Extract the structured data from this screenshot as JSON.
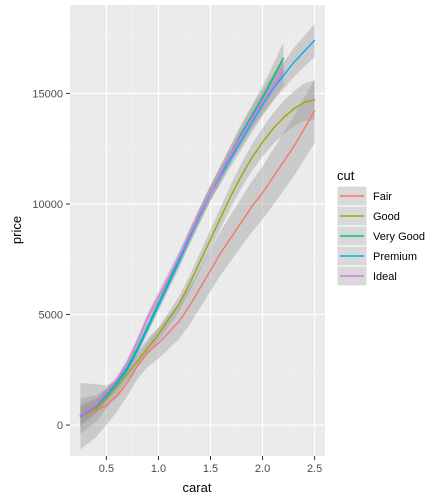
{
  "chart_data": {
    "type": "line",
    "title": "",
    "xlabel": "carat",
    "ylabel": "price",
    "xlim": [
      0.15,
      2.6
    ],
    "ylim": [
      -1400,
      19000
    ],
    "x_ticks": [
      0.5,
      1.0,
      1.5,
      2.0,
      2.5
    ],
    "x_tick_labels": [
      "0.5",
      "1.0",
      "1.5",
      "2.0",
      "2.5"
    ],
    "y_ticks": [
      0,
      5000,
      10000,
      15000
    ],
    "y_tick_labels": [
      "0",
      "5000",
      "10000",
      "15000"
    ],
    "grid": true,
    "legend": {
      "title": "cut",
      "position": "right"
    },
    "series": [
      {
        "name": "Fair",
        "color": "#F8766D",
        "x": [
          0.25,
          0.4,
          0.5,
          0.6,
          0.7,
          0.8,
          0.9,
          1.0,
          1.1,
          1.2,
          1.3,
          1.4,
          1.5,
          1.6,
          1.7,
          1.8,
          1.9,
          2.0,
          2.1,
          2.2,
          2.3,
          2.4,
          2.5
        ],
        "y": [
          400,
          650,
          900,
          1300,
          1900,
          2700,
          3300,
          3700,
          4200,
          4700,
          5400,
          6200,
          7000,
          7800,
          8500,
          9200,
          9900,
          10500,
          11200,
          11900,
          12600,
          13400,
          14200
        ],
        "band": [
          1500,
          1200,
          900,
          700,
          600,
          600,
          650,
          700,
          750,
          800,
          850,
          900,
          950,
          1000,
          1050,
          1100,
          1150,
          1200,
          1250,
          1300,
          1350,
          1400,
          1450
        ]
      },
      {
        "name": "Good",
        "color": "#A3A500",
        "x": [
          0.25,
          0.4,
          0.5,
          0.6,
          0.7,
          0.8,
          0.9,
          1.0,
          1.1,
          1.2,
          1.3,
          1.4,
          1.5,
          1.6,
          1.7,
          1.8,
          1.9,
          2.0,
          2.1,
          2.2,
          2.3,
          2.4,
          2.5
        ],
        "y": [
          400,
          750,
          1200,
          1700,
          2300,
          2900,
          3500,
          4100,
          4800,
          5500,
          6400,
          7400,
          8400,
          9400,
          10400,
          11300,
          12100,
          12800,
          13400,
          13900,
          14300,
          14600,
          14700
        ],
        "band": [
          800,
          600,
          450,
          350,
          300,
          280,
          280,
          300,
          320,
          340,
          360,
          400,
          440,
          480,
          520,
          560,
          600,
          650,
          700,
          750,
          800,
          850,
          900
        ]
      },
      {
        "name": "Very Good",
        "color": "#00BF7D",
        "x": [
          0.25,
          0.4,
          0.5,
          0.6,
          0.7,
          0.8,
          0.9,
          1.0,
          1.1,
          1.2,
          1.3,
          1.4,
          1.5,
          1.6,
          1.7,
          1.8,
          1.9,
          2.0,
          2.1,
          2.2
        ],
        "y": [
          450,
          850,
          1350,
          1900,
          2600,
          3500,
          4500,
          5500,
          6500,
          7500,
          8500,
          9500,
          10500,
          11400,
          12300,
          13200,
          14000,
          14800,
          15700,
          16600
        ],
        "band": [
          500,
          350,
          250,
          200,
          200,
          220,
          240,
          260,
          280,
          300,
          320,
          340,
          360,
          380,
          400,
          450,
          500,
          550,
          600,
          700
        ]
      },
      {
        "name": "Premium",
        "color": "#00B0F6",
        "x": [
          0.25,
          0.4,
          0.5,
          0.6,
          0.7,
          0.8,
          0.9,
          1.0,
          1.1,
          1.2,
          1.3,
          1.4,
          1.5,
          1.6,
          1.7,
          1.8,
          1.9,
          2.0,
          2.1,
          2.2,
          2.3,
          2.4,
          2.5
        ],
        "y": [
          400,
          850,
          1300,
          1850,
          2500,
          3400,
          4400,
          5400,
          6400,
          7400,
          8500,
          9500,
          10500,
          11300,
          12100,
          12900,
          13700,
          14500,
          15200,
          15800,
          16400,
          16900,
          17400
        ],
        "band": [
          400,
          300,
          220,
          180,
          180,
          200,
          220,
          240,
          260,
          280,
          300,
          320,
          340,
          360,
          380,
          420,
          460,
          500,
          550,
          600,
          650,
          700,
          750
        ]
      },
      {
        "name": "Ideal",
        "color": "#E76BF3",
        "x": [
          0.25,
          0.4,
          0.5,
          0.6,
          0.7,
          0.8,
          0.9,
          1.0,
          1.1,
          1.2,
          1.3,
          1.4,
          1.5,
          1.6,
          1.7,
          1.8,
          1.9,
          2.0,
          2.1,
          2.2
        ],
        "y": [
          450,
          900,
          1450,
          2050,
          2800,
          3800,
          4900,
          5800,
          6700,
          7600,
          8600,
          9600,
          10500,
          11400,
          12300,
          13100,
          13900,
          14600,
          15300,
          16000
        ],
        "band": [
          350,
          250,
          200,
          170,
          170,
          190,
          210,
          230,
          250,
          270,
          290,
          310,
          330,
          350,
          400,
          450,
          500,
          550,
          600,
          650
        ]
      }
    ]
  }
}
